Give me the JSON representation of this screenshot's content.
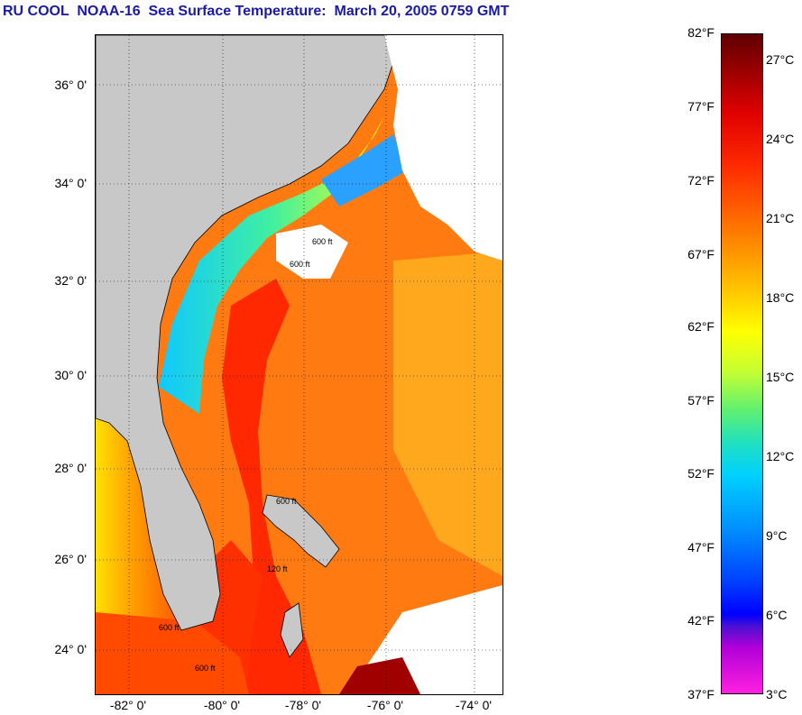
{
  "title": "RU COOL  NOAA-16  Sea Surface Temperature:  March 20, 2005 0759 GMT",
  "map": {
    "lat_labels": [
      "36° 0'",
      "34° 0'",
      "32° 0'",
      "30° 0'",
      "28° 0'",
      "26° 0'",
      "24° 0'"
    ],
    "lon_labels": [
      "-82° 0'",
      "-80° 0'",
      "-78° 0'",
      "-76° 0'",
      "-74° 0'"
    ],
    "contour_labels": [
      "600 ft",
      "600 ft",
      "600 ft",
      "120 ft",
      "600 ft",
      "600 ft"
    ],
    "colors": {
      "land": "#c8c8c8",
      "cloud": "#ffffff",
      "gulf_stream": "#ff3a00",
      "shelf": "#ff8800"
    }
  },
  "colorbar": {
    "fahrenheit": [
      "82°F",
      "77°F",
      "72°F",
      "67°F",
      "62°F",
      "57°F",
      "52°F",
      "47°F",
      "42°F",
      "37°F"
    ],
    "celsius": [
      "27°C",
      "24°C",
      "21°C",
      "18°C",
      "15°C",
      "12°C",
      "9°C",
      "6°C",
      "3°C"
    ]
  }
}
